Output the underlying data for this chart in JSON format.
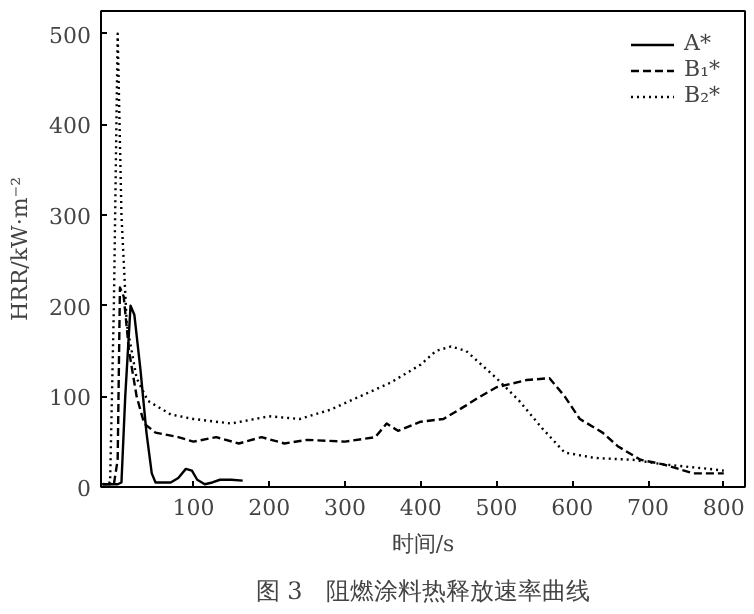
{
  "chart_data": {
    "type": "line",
    "xlabel": "时间/s",
    "ylabel": "HRR/kW·m⁻²",
    "annotations": [
      "图 3　阻燃涂料热释放速率曲线"
    ],
    "xlim": [
      -22,
      828
    ],
    "ylim": [
      0,
      525
    ],
    "xticks": [
      100,
      200,
      300,
      400,
      500,
      600,
      700,
      800
    ],
    "yticks": [
      0,
      100,
      200,
      300,
      400,
      500
    ],
    "grid": false,
    "legend": "top right",
    "marker": "none",
    "series": [
      {
        "name": "A*",
        "color": "#000000",
        "line_style": "solid",
        "x": [
          -20,
          0,
          5,
          10,
          17,
          22,
          30,
          38,
          45,
          50,
          70,
          80,
          90,
          98,
          105,
          115,
          125,
          135,
          150,
          165
        ],
        "values": [
          3,
          3,
          5,
          100,
          200,
          190,
          130,
          60,
          15,
          5,
          5,
          10,
          20,
          18,
          8,
          3,
          5,
          8,
          8,
          7
        ]
      },
      {
        "name": "B₁*",
        "color": "#000000",
        "line_style": "dashed",
        "x": [
          -20,
          -5,
          0,
          3,
          8,
          15,
          25,
          35,
          50,
          80,
          100,
          130,
          160,
          190,
          220,
          250,
          300,
          340,
          355,
          370,
          400,
          430,
          460,
          475,
          500,
          540,
          570,
          590,
          610,
          640,
          660,
          690,
          720,
          760,
          800
        ],
        "values": [
          3,
          3,
          30,
          220,
          210,
          150,
          100,
          70,
          60,
          55,
          50,
          55,
          48,
          55,
          48,
          52,
          50,
          55,
          70,
          62,
          72,
          75,
          90,
          98,
          110,
          118,
          120,
          100,
          75,
          60,
          45,
          30,
          25,
          15,
          15
        ]
      },
      {
        "name": "B₂*",
        "color": "#000000",
        "line_style": "dotted",
        "x": [
          -20,
          -10,
          -5,
          0,
          5,
          12,
          25,
          40,
          70,
          100,
          150,
          200,
          240,
          280,
          320,
          360,
          400,
          420,
          440,
          460,
          500,
          530,
          560,
          590,
          630,
          680,
          720,
          780,
          800
        ],
        "values": [
          3,
          5,
          200,
          500,
          300,
          180,
          120,
          95,
          80,
          75,
          70,
          78,
          75,
          85,
          100,
          115,
          135,
          150,
          155,
          150,
          120,
          95,
          65,
          38,
          32,
          30,
          25,
          20,
          18
        ]
      }
    ]
  }
}
